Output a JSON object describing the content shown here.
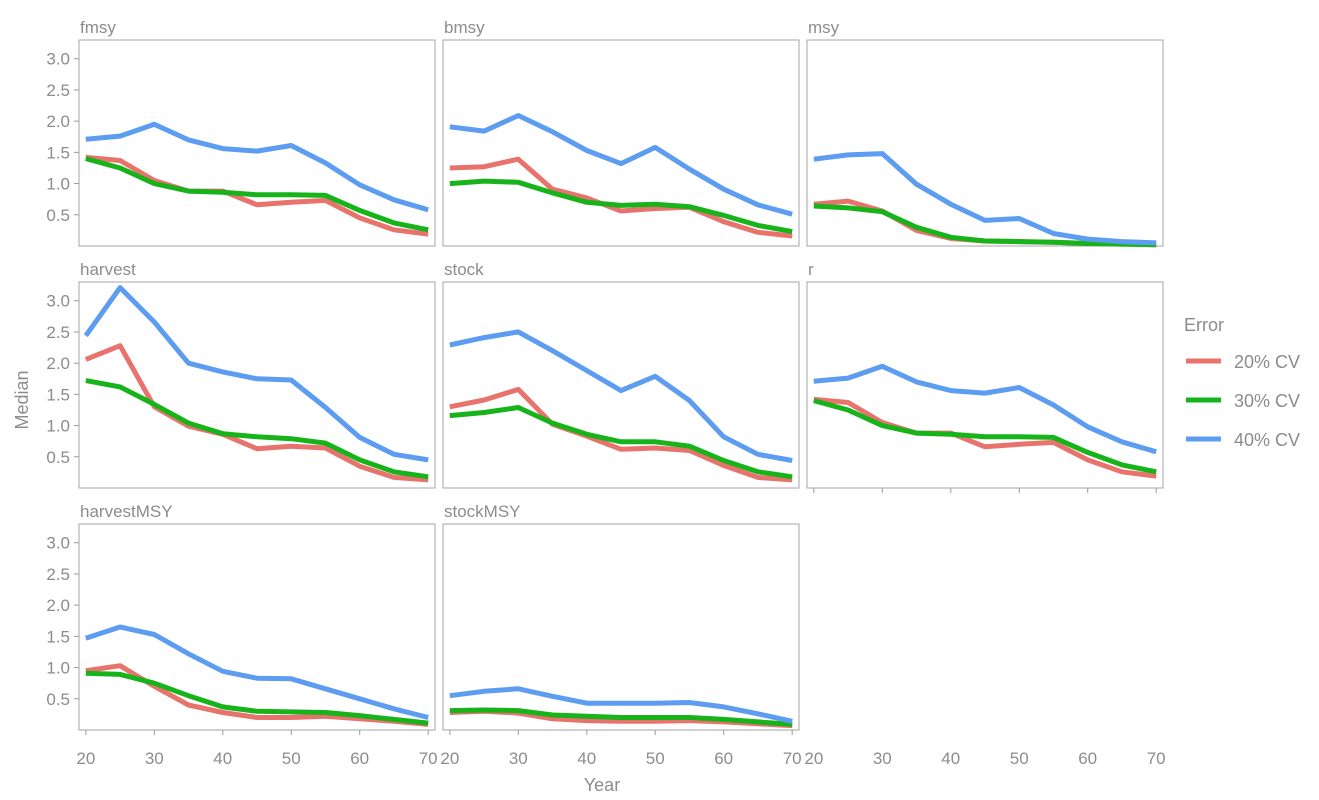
{
  "chart_data": {
    "type": "line",
    "facets_layout": "3x3 grid, shared axes",
    "xlabel": "Year",
    "ylabel": "Median",
    "x": [
      20,
      25,
      30,
      35,
      40,
      45,
      50,
      55,
      60,
      65,
      70
    ],
    "xlim": [
      19,
      71
    ],
    "ylim": [
      0.0,
      3.3
    ],
    "xticks": [
      "20",
      "30",
      "40",
      "50",
      "60",
      "70"
    ],
    "yticks": [
      "0.5",
      "1.0",
      "1.5",
      "2.0",
      "2.5",
      "3.0"
    ],
    "grid": false,
    "legend": {
      "title": "Error",
      "position": "right",
      "entries": [
        {
          "label": "20% CV",
          "color": "#e8736c"
        },
        {
          "label": "30% CV",
          "color": "#17b31a"
        },
        {
          "label": "40% CV",
          "color": "#5c9cf1"
        }
      ]
    },
    "panels": [
      {
        "title": "fmsy",
        "series": [
          {
            "name": "20% CV",
            "values": [
              1.42,
              1.37,
              1.05,
              0.88,
              0.88,
              0.66,
              0.7,
              0.73,
              0.45,
              0.26,
              0.19
            ]
          },
          {
            "name": "30% CV",
            "values": [
              1.4,
              1.25,
              1.0,
              0.88,
              0.86,
              0.82,
              0.82,
              0.81,
              0.57,
              0.37,
              0.26
            ]
          },
          {
            "name": "40% CV",
            "values": [
              1.71,
              1.76,
              1.95,
              1.7,
              1.56,
              1.52,
              1.61,
              1.33,
              0.98,
              0.74,
              0.58
            ]
          }
        ]
      },
      {
        "title": "bmsy",
        "series": [
          {
            "name": "20% CV",
            "values": [
              1.25,
              1.27,
              1.39,
              0.91,
              0.77,
              0.56,
              0.6,
              0.62,
              0.39,
              0.22,
              0.16
            ]
          },
          {
            "name": "30% CV",
            "values": [
              1.0,
              1.04,
              1.02,
              0.85,
              0.7,
              0.65,
              0.67,
              0.63,
              0.49,
              0.33,
              0.23
            ]
          },
          {
            "name": "40% CV",
            "values": [
              1.91,
              1.84,
              2.09,
              1.83,
              1.53,
              1.32,
              1.58,
              1.23,
              0.91,
              0.66,
              0.51
            ]
          }
        ]
      },
      {
        "title": "msy",
        "series": [
          {
            "name": "20% CV",
            "values": [
              0.67,
              0.72,
              0.56,
              0.25,
              0.12,
              0.08,
              0.07,
              0.06,
              0.04,
              0.03,
              0.02
            ]
          },
          {
            "name": "30% CV",
            "values": [
              0.64,
              0.61,
              0.55,
              0.3,
              0.14,
              0.08,
              0.07,
              0.06,
              0.04,
              0.03,
              0.02
            ]
          },
          {
            "name": "40% CV",
            "values": [
              1.39,
              1.46,
              1.48,
              0.99,
              0.67,
              0.41,
              0.44,
              0.2,
              0.11,
              0.07,
              0.05
            ]
          }
        ]
      },
      {
        "title": "harvest",
        "series": [
          {
            "name": "20% CV",
            "values": [
              2.06,
              2.28,
              1.3,
              0.99,
              0.86,
              0.63,
              0.67,
              0.64,
              0.35,
              0.17,
              0.13
            ]
          },
          {
            "name": "30% CV",
            "values": [
              1.72,
              1.62,
              1.34,
              1.04,
              0.87,
              0.82,
              0.79,
              0.72,
              0.45,
              0.26,
              0.18
            ]
          },
          {
            "name": "40% CV",
            "values": [
              2.44,
              3.21,
              2.66,
              2.0,
              1.86,
              1.75,
              1.73,
              1.29,
              0.81,
              0.54,
              0.45
            ]
          }
        ]
      },
      {
        "title": "stock",
        "series": [
          {
            "name": "20% CV",
            "values": [
              1.3,
              1.41,
              1.58,
              1.02,
              0.83,
              0.62,
              0.64,
              0.6,
              0.36,
              0.17,
              0.13
            ]
          },
          {
            "name": "30% CV",
            "values": [
              1.16,
              1.21,
              1.29,
              1.04,
              0.86,
              0.74,
              0.74,
              0.67,
              0.44,
              0.26,
              0.18
            ]
          },
          {
            "name": "40% CV",
            "values": [
              2.29,
              2.41,
              2.5,
              2.2,
              1.88,
              1.56,
              1.79,
              1.4,
              0.82,
              0.54,
              0.44
            ]
          }
        ]
      },
      {
        "title": "r",
        "series": [
          {
            "name": "20% CV",
            "values": [
              1.42,
              1.37,
              1.05,
              0.88,
              0.88,
              0.66,
              0.7,
              0.73,
              0.45,
              0.26,
              0.19
            ]
          },
          {
            "name": "30% CV",
            "values": [
              1.4,
              1.25,
              1.0,
              0.88,
              0.86,
              0.82,
              0.82,
              0.81,
              0.57,
              0.37,
              0.26
            ]
          },
          {
            "name": "40% CV",
            "values": [
              1.71,
              1.76,
              1.95,
              1.7,
              1.56,
              1.52,
              1.61,
              1.33,
              0.98,
              0.74,
              0.58
            ]
          }
        ]
      },
      {
        "title": "harvestMSY",
        "series": [
          {
            "name": "20% CV",
            "values": [
              0.95,
              1.03,
              0.7,
              0.4,
              0.28,
              0.2,
              0.2,
              0.22,
              0.18,
              0.14,
              0.09
            ]
          },
          {
            "name": "30% CV",
            "values": [
              0.91,
              0.89,
              0.75,
              0.55,
              0.37,
              0.3,
              0.29,
              0.28,
              0.23,
              0.17,
              0.11
            ]
          },
          {
            "name": "40% CV",
            "values": [
              1.47,
              1.65,
              1.53,
              1.22,
              0.94,
              0.83,
              0.82,
              0.66,
              0.5,
              0.34,
              0.2
            ]
          }
        ]
      },
      {
        "title": "stockMSY",
        "series": [
          {
            "name": "20% CV",
            "values": [
              0.28,
              0.3,
              0.27,
              0.18,
              0.15,
              0.14,
              0.14,
              0.15,
              0.13,
              0.1,
              0.07
            ]
          },
          {
            "name": "30% CV",
            "values": [
              0.31,
              0.32,
              0.31,
              0.24,
              0.22,
              0.2,
              0.2,
              0.2,
              0.17,
              0.13,
              0.09
            ]
          },
          {
            "name": "40% CV",
            "values": [
              0.55,
              0.62,
              0.66,
              0.54,
              0.43,
              0.43,
              0.43,
              0.44,
              0.37,
              0.26,
              0.14
            ]
          }
        ]
      }
    ]
  }
}
